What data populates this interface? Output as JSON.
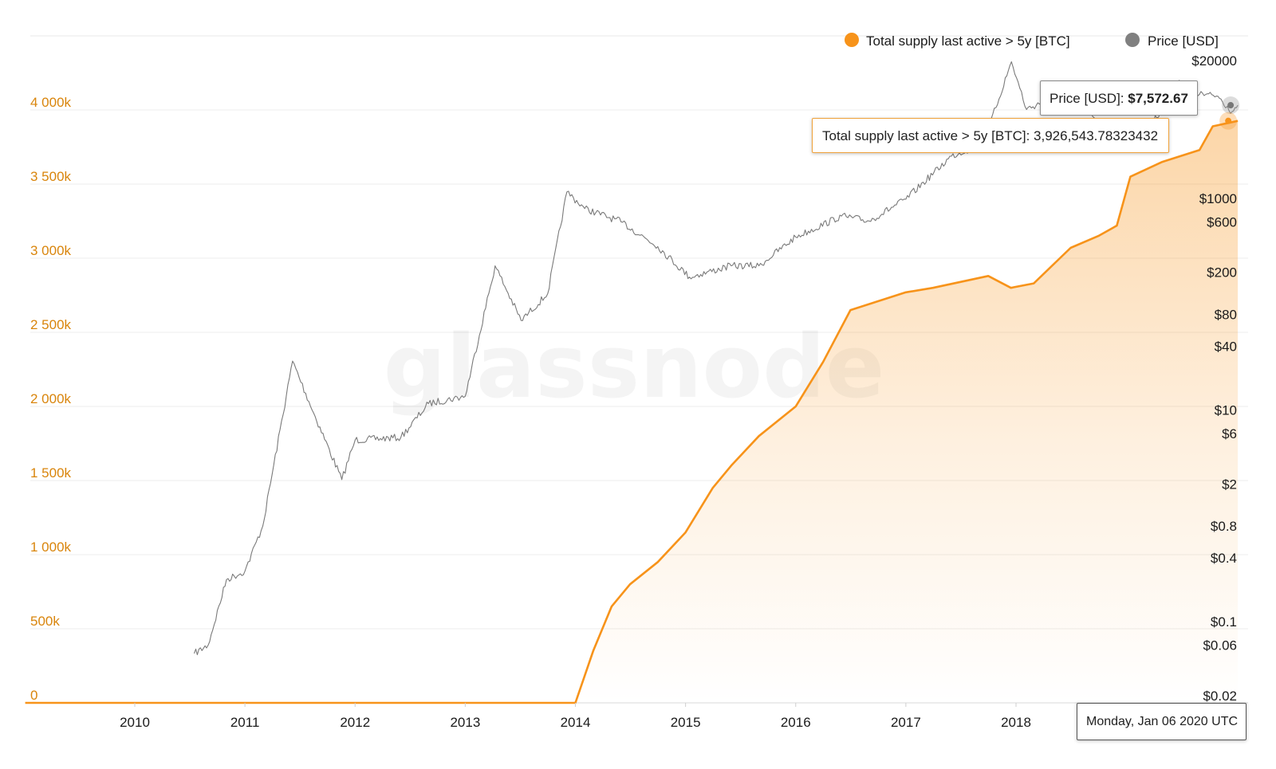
{
  "legend": {
    "supply_label": "Total supply last active > 5y [BTC]",
    "price_label": "Price [USD]",
    "supply_color": "#f7931a",
    "price_color": "#808080"
  },
  "watermark": "glassnode",
  "tooltips": {
    "price_label": "Price [USD]:",
    "price_value": "$7,572.67",
    "supply_label": "Total supply last active > 5y [BTC]:",
    "supply_value": "3,926,543.78323432",
    "date": "Monday, Jan 06 2020 UTC"
  },
  "chart_data": {
    "type": "line",
    "grid": true,
    "legend_position": "top-right",
    "x_axis": {
      "ticks": [
        "2010",
        "2011",
        "2012",
        "2013",
        "2014",
        "2015",
        "2016",
        "2017",
        "2018"
      ],
      "range": [
        "2009-01-03",
        "2020-01-06"
      ]
    },
    "y_left": {
      "ticks": [
        "0",
        "500k",
        "1 000k",
        "1 500k",
        "2 000k",
        "2 500k",
        "3 000k",
        "3 500k",
        "4 000k"
      ],
      "tick_values": [
        0,
        500000,
        1000000,
        1500000,
        2000000,
        2500000,
        3000000,
        3500000,
        4000000
      ],
      "range": [
        0,
        4500000
      ]
    },
    "y_right": {
      "scale": "log",
      "ticks": [
        "$0.02",
        "$0.06",
        "$0.1",
        "$0.4",
        "$0.8",
        "$2",
        "$6",
        "$10",
        "$40",
        "$80",
        "$200",
        "$600",
        "$1000",
        "$20000"
      ],
      "tick_values": [
        0.02,
        0.06,
        0.1,
        0.4,
        0.8,
        2,
        6,
        10,
        40,
        80,
        200,
        600,
        1000,
        20000
      ]
    },
    "series": [
      {
        "name": "Total supply last active > 5y [BTC]",
        "axis": "left",
        "points": [
          [
            "2009-01-03",
            0
          ],
          [
            "2014-01-01",
            0
          ],
          [
            "2014-03-01",
            350000
          ],
          [
            "2014-05-01",
            650000
          ],
          [
            "2014-07-01",
            800000
          ],
          [
            "2014-10-01",
            950000
          ],
          [
            "2015-01-01",
            1150000
          ],
          [
            "2015-04-01",
            1450000
          ],
          [
            "2015-06-01",
            1600000
          ],
          [
            "2015-09-01",
            1800000
          ],
          [
            "2016-01-01",
            2000000
          ],
          [
            "2016-04-01",
            2300000
          ],
          [
            "2016-07-01",
            2650000
          ],
          [
            "2017-01-01",
            2770000
          ],
          [
            "2017-04-01",
            2800000
          ],
          [
            "2017-10-01",
            2880000
          ],
          [
            "2017-12-15",
            2800000
          ],
          [
            "2018-03-01",
            2830000
          ],
          [
            "2018-07-01",
            3070000
          ],
          [
            "2018-10-01",
            3150000
          ],
          [
            "2018-12-01",
            3220000
          ],
          [
            "2019-01-15",
            3550000
          ],
          [
            "2019-05-01",
            3650000
          ],
          [
            "2019-09-01",
            3730000
          ],
          [
            "2019-10-15",
            3890000
          ],
          [
            "2020-01-06",
            3926543.78
          ]
        ]
      },
      {
        "name": "Price [USD]",
        "axis": "right",
        "points": [
          [
            "2010-07-17",
            0.05
          ],
          [
            "2010-09-01",
            0.06
          ],
          [
            "2010-11-01",
            0.25
          ],
          [
            "2011-01-01",
            0.3
          ],
          [
            "2011-03-01",
            0.8
          ],
          [
            "2011-06-08",
            29
          ],
          [
            "2011-08-01",
            12
          ],
          [
            "2011-11-18",
            2.2
          ],
          [
            "2012-01-01",
            5.2
          ],
          [
            "2012-06-01",
            5.5
          ],
          [
            "2012-09-01",
            11.5
          ],
          [
            "2013-01-01",
            13.5
          ],
          [
            "2013-04-10",
            230
          ],
          [
            "2013-07-05",
            70
          ],
          [
            "2013-10-01",
            125
          ],
          [
            "2013-12-04",
            1150
          ],
          [
            "2014-02-01",
            800
          ],
          [
            "2014-06-01",
            600
          ],
          [
            "2014-10-01",
            350
          ],
          [
            "2015-01-14",
            180
          ],
          [
            "2015-06-01",
            230
          ],
          [
            "2015-09-01",
            230
          ],
          [
            "2016-01-01",
            430
          ],
          [
            "2016-06-01",
            680
          ],
          [
            "2016-09-01",
            610
          ],
          [
            "2017-01-01",
            980
          ],
          [
            "2017-06-01",
            2500
          ],
          [
            "2017-09-15",
            3300
          ],
          [
            "2017-12-17",
            19500
          ],
          [
            "2018-02-05",
            6900
          ],
          [
            "2018-05-01",
            9000
          ],
          [
            "2018-09-01",
            6500
          ],
          [
            "2018-12-15",
            3200
          ],
          [
            "2019-03-01",
            3800
          ],
          [
            "2019-06-26",
            13000
          ],
          [
            "2019-09-01",
            9600
          ],
          [
            "2019-11-01",
            9200
          ],
          [
            "2019-12-18",
            6600
          ],
          [
            "2020-01-06",
            7572.67
          ]
        ]
      }
    ]
  }
}
